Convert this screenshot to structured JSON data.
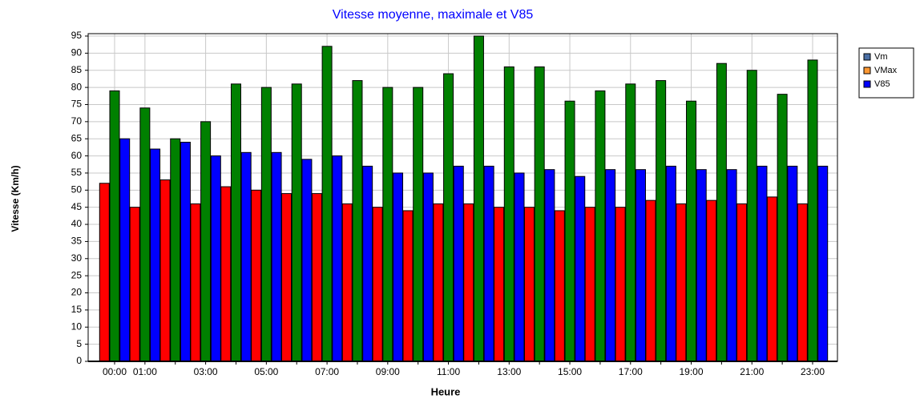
{
  "chart_data": {
    "type": "bar",
    "title": "Vitesse moyenne, maximale et V85",
    "x_label": "Heure",
    "y_label": "Vitesse (Km/h)",
    "categories": [
      "00:00",
      "01:00",
      null,
      "03:00",
      null,
      "05:00",
      null,
      "07:00",
      null,
      "09:00",
      null,
      "11:00",
      null,
      "13:00",
      null,
      "15:00",
      null,
      "17:00",
      null,
      "19:00",
      null,
      "21:00",
      null,
      "23:00"
    ],
    "series": [
      {
        "name": "Vm",
        "color": "#ff0000",
        "legend_color": "#4a6fa5",
        "values": [
          52,
          45,
          53,
          46,
          51,
          50,
          49,
          49,
          46,
          45,
          44,
          46,
          46,
          45,
          45,
          44,
          45,
          45,
          47,
          46,
          47,
          46,
          48,
          46
        ]
      },
      {
        "name": "VMax",
        "color": "#008000",
        "legend_color": "#ff9933",
        "values": [
          79,
          74,
          65,
          70,
          81,
          80,
          81,
          92,
          82,
          80,
          80,
          84,
          95,
          86,
          86,
          76,
          79,
          81,
          82,
          76,
          87,
          85,
          78,
          88
        ]
      },
      {
        "name": "V85",
        "color": "#0000ff",
        "legend_color": "#0000ff",
        "values": [
          65,
          62,
          64,
          60,
          61,
          61,
          59,
          60,
          57,
          55,
          55,
          57,
          57,
          55,
          56,
          54,
          56,
          56,
          57,
          56,
          56,
          57,
          57,
          57
        ]
      }
    ],
    "ylim": [
      0,
      95
    ],
    "yticks": [
      0,
      5,
      10,
      15,
      20,
      25,
      30,
      35,
      40,
      45,
      50,
      55,
      60,
      65,
      70,
      75,
      80,
      85,
      90,
      95
    ],
    "grid": true,
    "legend": "right"
  }
}
